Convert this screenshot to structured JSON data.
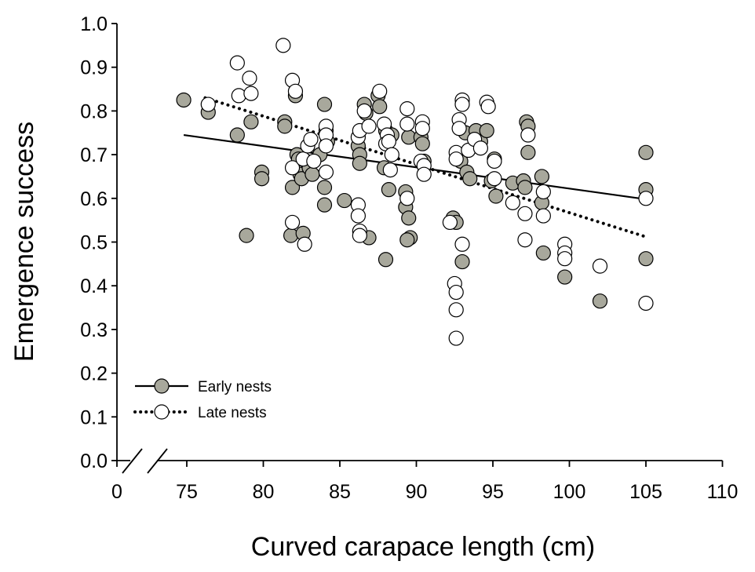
{
  "chart_data": {
    "type": "scatter",
    "xlabel": "Curved carapace length (cm)",
    "ylabel": "Emergence success",
    "xlim": [
      70,
      110
    ],
    "ylim": [
      0,
      1.0
    ],
    "x_axis_break": true,
    "x_ticks": [
      75,
      80,
      85,
      90,
      95,
      100,
      105,
      110
    ],
    "x_tick_labels": [
      "0",
      "75",
      "80",
      "85",
      "90",
      "95",
      "100",
      "105",
      "110"
    ],
    "y_ticks": [
      0.0,
      0.1,
      0.2,
      0.3,
      0.4,
      0.5,
      0.6,
      0.7,
      0.8,
      0.9,
      1.0
    ],
    "y_tick_labels": [
      "0.0",
      "0.1",
      "0.2",
      "0.3",
      "0.4",
      "0.5",
      "0.6",
      "0.7",
      "0.8",
      "0.9",
      "1.0"
    ],
    "legend_position": "bottom-left",
    "series": [
      {
        "name": "Early nests",
        "marker_fill": "#a8a89c",
        "line_style": "solid",
        "trend": [
          [
            74.8,
            0.745
          ],
          [
            105,
            0.598
          ]
        ],
        "points": [
          [
            74.8,
            0.825
          ],
          [
            76.4,
            0.797
          ],
          [
            78.3,
            0.745
          ],
          [
            79.2,
            0.775
          ],
          [
            79.9,
            0.66
          ],
          [
            79.9,
            0.645
          ],
          [
            78.9,
            0.515
          ],
          [
            81.4,
            0.775
          ],
          [
            81.4,
            0.765
          ],
          [
            81.9,
            0.625
          ],
          [
            81.8,
            0.515
          ],
          [
            82.1,
            0.835
          ],
          [
            82.2,
            0.7
          ],
          [
            82.3,
            0.69
          ],
          [
            82.4,
            0.655
          ],
          [
            82.5,
            0.645
          ],
          [
            82.6,
            0.52
          ],
          [
            82.8,
            0.685
          ],
          [
            83.0,
            0.67
          ],
          [
            83.2,
            0.655
          ],
          [
            83.7,
            0.7
          ],
          [
            84.0,
            0.815
          ],
          [
            84.1,
            0.755
          ],
          [
            84.2,
            0.73
          ],
          [
            84.0,
            0.625
          ],
          [
            84.0,
            0.585
          ],
          [
            85.3,
            0.595
          ],
          [
            86.2,
            0.72
          ],
          [
            86.3,
            0.7
          ],
          [
            86.3,
            0.68
          ],
          [
            86.6,
            0.815
          ],
          [
            86.7,
            0.795
          ],
          [
            86.9,
            0.51
          ],
          [
            87.5,
            0.835
          ],
          [
            87.6,
            0.81
          ],
          [
            87.9,
            0.67
          ],
          [
            88.0,
            0.755
          ],
          [
            88.2,
            0.62
          ],
          [
            88.4,
            0.745
          ],
          [
            88.0,
            0.46
          ],
          [
            89.3,
            0.615
          ],
          [
            89.3,
            0.58
          ],
          [
            89.5,
            0.555
          ],
          [
            89.5,
            0.74
          ],
          [
            89.6,
            0.51
          ],
          [
            89.4,
            0.505
          ],
          [
            90.3,
            0.74
          ],
          [
            90.4,
            0.725
          ],
          [
            90.5,
            0.685
          ],
          [
            92.4,
            0.555
          ],
          [
            92.6,
            0.545
          ],
          [
            92.9,
            0.685
          ],
          [
            93.0,
            0.455
          ],
          [
            93.2,
            0.75
          ],
          [
            93.3,
            0.66
          ],
          [
            93.5,
            0.645
          ],
          [
            93.9,
            0.755
          ],
          [
            94.2,
            0.73
          ],
          [
            94.6,
            0.755
          ],
          [
            94.9,
            0.64
          ],
          [
            95.1,
            0.69
          ],
          [
            95.2,
            0.605
          ],
          [
            96.3,
            0.635
          ],
          [
            97.0,
            0.64
          ],
          [
            97.1,
            0.625
          ],
          [
            97.2,
            0.775
          ],
          [
            97.3,
            0.765
          ],
          [
            97.3,
            0.705
          ],
          [
            98.2,
            0.65
          ],
          [
            98.2,
            0.59
          ],
          [
            98.3,
            0.475
          ],
          [
            99.7,
            0.42
          ],
          [
            102.0,
            0.365
          ],
          [
            105.0,
            0.705
          ],
          [
            105.0,
            0.62
          ],
          [
            105.0,
            0.462
          ]
        ]
      },
      {
        "name": "Late nests",
        "marker_fill": "#ffffff",
        "line_style": "dotted",
        "trend": [
          [
            76.2,
            0.83
          ],
          [
            105,
            0.512
          ]
        ],
        "points": [
          [
            76.4,
            0.815
          ],
          [
            78.3,
            0.91
          ],
          [
            78.4,
            0.835
          ],
          [
            79.1,
            0.875
          ],
          [
            79.2,
            0.84
          ],
          [
            81.3,
            0.95
          ],
          [
            81.9,
            0.87
          ],
          [
            81.9,
            0.67
          ],
          [
            81.9,
            0.545
          ],
          [
            82.1,
            0.845
          ],
          [
            82.6,
            0.69
          ],
          [
            82.7,
            0.495
          ],
          [
            82.9,
            0.72
          ],
          [
            83.1,
            0.735
          ],
          [
            83.3,
            0.685
          ],
          [
            84.1,
            0.765
          ],
          [
            84.1,
            0.745
          ],
          [
            84.1,
            0.72
          ],
          [
            84.1,
            0.66
          ],
          [
            86.2,
            0.74
          ],
          [
            86.3,
            0.755
          ],
          [
            86.2,
            0.585
          ],
          [
            86.2,
            0.56
          ],
          [
            86.3,
            0.525
          ],
          [
            86.3,
            0.515
          ],
          [
            86.6,
            0.8
          ],
          [
            86.9,
            0.765
          ],
          [
            87.6,
            0.845
          ],
          [
            87.9,
            0.77
          ],
          [
            88.1,
            0.745
          ],
          [
            88.0,
            0.725
          ],
          [
            88.2,
            0.73
          ],
          [
            88.3,
            0.665
          ],
          [
            88.4,
            0.7
          ],
          [
            89.4,
            0.805
          ],
          [
            89.4,
            0.77
          ],
          [
            89.4,
            0.6
          ],
          [
            90.4,
            0.775
          ],
          [
            90.4,
            0.76
          ],
          [
            90.3,
            0.685
          ],
          [
            90.5,
            0.675
          ],
          [
            90.5,
            0.655
          ],
          [
            92.2,
            0.545
          ],
          [
            92.5,
            0.405
          ],
          [
            92.6,
            0.385
          ],
          [
            92.6,
            0.345
          ],
          [
            92.6,
            0.28
          ],
          [
            92.6,
            0.705
          ],
          [
            92.6,
            0.69
          ],
          [
            92.8,
            0.78
          ],
          [
            92.8,
            0.76
          ],
          [
            93.0,
            0.825
          ],
          [
            93.0,
            0.815
          ],
          [
            93.0,
            0.495
          ],
          [
            93.4,
            0.71
          ],
          [
            93.8,
            0.735
          ],
          [
            94.2,
            0.715
          ],
          [
            94.6,
            0.82
          ],
          [
            94.7,
            0.81
          ],
          [
            95.1,
            0.685
          ],
          [
            95.1,
            0.645
          ],
          [
            96.3,
            0.59
          ],
          [
            97.1,
            0.565
          ],
          [
            97.1,
            0.505
          ],
          [
            97.3,
            0.745
          ],
          [
            98.3,
            0.615
          ],
          [
            98.3,
            0.56
          ],
          [
            99.7,
            0.495
          ],
          [
            99.7,
            0.475
          ],
          [
            99.7,
            0.462
          ],
          [
            102.0,
            0.445
          ],
          [
            105.0,
            0.6
          ],
          [
            105.0,
            0.36
          ]
        ]
      }
    ]
  }
}
